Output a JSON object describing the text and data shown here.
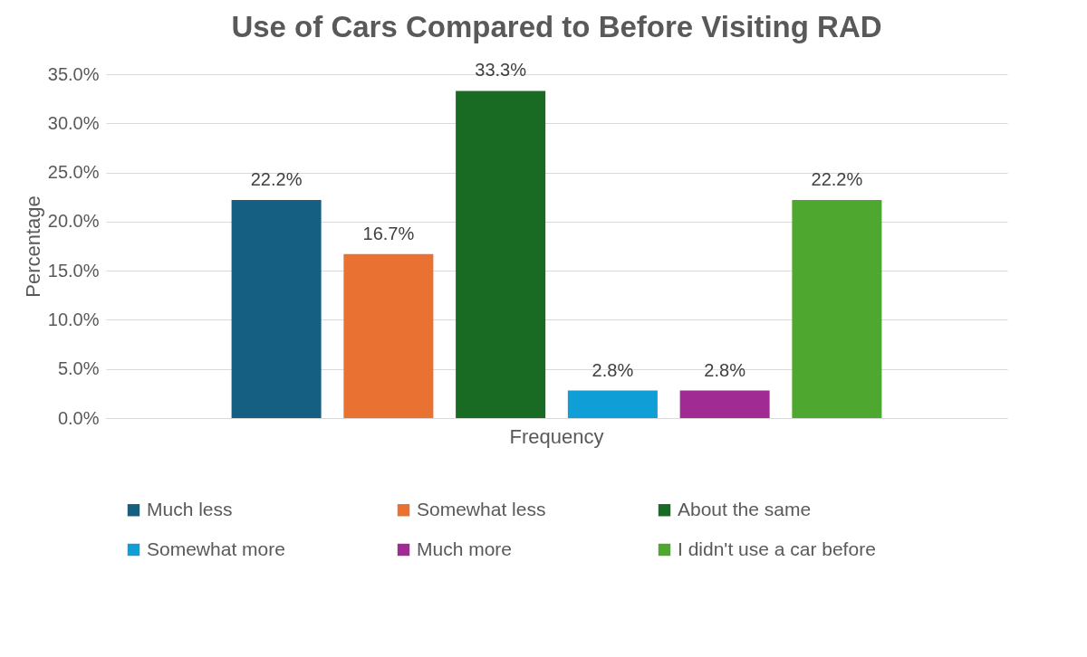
{
  "chart_data": {
    "type": "bar",
    "title": "Use of Cars Compared to Before Visiting RAD",
    "ylabel": "Percentage",
    "categories": [
      "Frequency"
    ],
    "series": [
      {
        "name": "Much less",
        "color": "#156082",
        "values": [
          22.2
        ],
        "value_labels": [
          "22.2%"
        ]
      },
      {
        "name": "Somewhat less",
        "color": "#e97132",
        "values": [
          16.7
        ],
        "value_labels": [
          "16.7%"
        ]
      },
      {
        "name": "About the same",
        "color": "#196b24",
        "values": [
          33.3
        ],
        "value_labels": [
          "33.3%"
        ]
      },
      {
        "name": "Somewhat more",
        "color": "#0f9ed5",
        "values": [
          2.8
        ],
        "value_labels": [
          "2.8%"
        ]
      },
      {
        "name": "Much more",
        "color": "#a02b93",
        "values": [
          2.8
        ],
        "value_labels": [
          "2.8%"
        ]
      },
      {
        "name": "I didn't use a car before",
        "color": "#4ea72e",
        "values": [
          22.2
        ],
        "value_labels": [
          "22.2%"
        ]
      }
    ],
    "ylim": [
      0,
      35
    ],
    "yticks": [
      {
        "value": 0,
        "label": "0.0%"
      },
      {
        "value": 5,
        "label": "5.0%"
      },
      {
        "value": 10,
        "label": "10.0%"
      },
      {
        "value": 15,
        "label": "15.0%"
      },
      {
        "value": 20,
        "label": "20.0%"
      },
      {
        "value": 25,
        "label": "25.0%"
      },
      {
        "value": 30,
        "label": "30.0%"
      },
      {
        "value": 35,
        "label": "35.0%"
      }
    ],
    "grid": "y",
    "legend": "bottom"
  }
}
